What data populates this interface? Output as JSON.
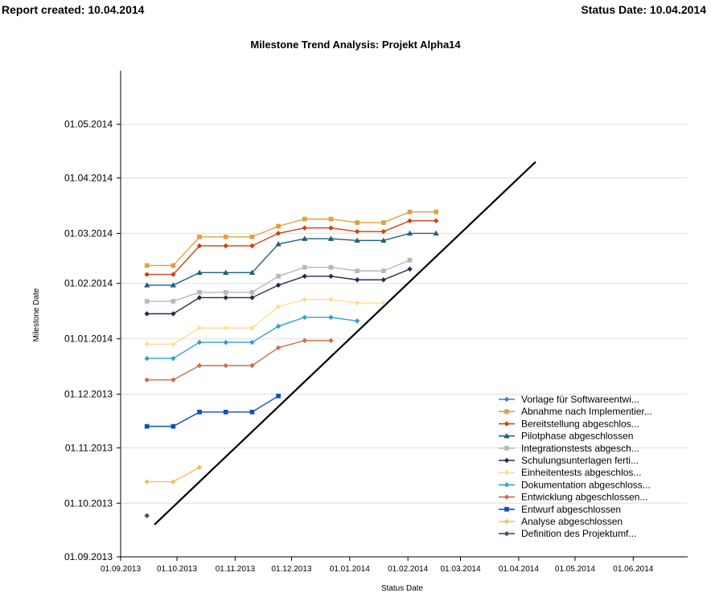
{
  "header": {
    "report_created": "Report created: 10.04.2014",
    "status_date": "Status Date: 10.04.2014"
  },
  "chart_data": {
    "type": "line",
    "title": "Milestone Trend Analysis: Projekt Alpha14",
    "xlabel": "Status Date",
    "ylabel": "Milestone Date",
    "x_ticks": [
      "01.09.2013",
      "01.10.2013",
      "01.11.2013",
      "01.12.2013",
      "01.01.2014",
      "01.02.2014",
      "01.03.2014",
      "01.04.2014",
      "01.05.2014",
      "01.06.2014"
    ],
    "y_ticks": [
      "01.09.2013",
      "01.10.2013",
      "01.11.2013",
      "01.12.2013",
      "01.01.2014",
      "01.02.2014",
      "01.03.2014",
      "01.04.2014",
      "01.05.2014"
    ],
    "xlim": [
      "2013-09-01",
      "2014-06-30"
    ],
    "ylim": [
      "2013-09-01",
      "2014-05-31"
    ],
    "grid": "horizontal",
    "legend_position": "bottom-right",
    "diagonal": {
      "from": "2013-09-19",
      "to": "2014-04-10",
      "color": "#000000"
    },
    "series": [
      {
        "name": "Vorlage für Softwareentwi...",
        "color": "#3f7fd6",
        "marker": "diamond",
        "points": []
      },
      {
        "name": "Abnahme nach Implementier...",
        "color": "#e0a040",
        "marker": "square",
        "points": [
          [
            "2013-09-15",
            "2014-02-11"
          ],
          [
            "2013-09-29",
            "2014-02-11"
          ],
          [
            "2013-10-13",
            "2014-02-27"
          ],
          [
            "2013-10-27",
            "2014-02-27"
          ],
          [
            "2013-11-10",
            "2014-02-27"
          ],
          [
            "2013-11-24",
            "2014-03-05"
          ],
          [
            "2013-12-08",
            "2014-03-09"
          ],
          [
            "2013-12-22",
            "2014-03-09"
          ],
          [
            "2014-01-05",
            "2014-03-07"
          ],
          [
            "2014-01-19",
            "2014-03-07"
          ],
          [
            "2014-02-02",
            "2014-03-13"
          ],
          [
            "2014-02-16",
            "2014-03-13"
          ]
        ]
      },
      {
        "name": "Bereitstellung abgeschlos...",
        "color": "#d04010",
        "marker": "diamond",
        "points": [
          [
            "2013-09-15",
            "2014-02-06"
          ],
          [
            "2013-09-29",
            "2014-02-06"
          ],
          [
            "2013-10-13",
            "2014-02-22"
          ],
          [
            "2013-10-27",
            "2014-02-22"
          ],
          [
            "2013-11-10",
            "2014-02-22"
          ],
          [
            "2013-11-24",
            "2014-03-01"
          ],
          [
            "2013-12-08",
            "2014-03-04"
          ],
          [
            "2013-12-22",
            "2014-03-04"
          ],
          [
            "2014-01-05",
            "2014-03-02"
          ],
          [
            "2014-01-19",
            "2014-03-02"
          ],
          [
            "2014-02-02",
            "2014-03-08"
          ],
          [
            "2014-02-16",
            "2014-03-08"
          ]
        ]
      },
      {
        "name": "Pilotphase abgeschlossen",
        "color": "#206080",
        "marker": "triangle",
        "points": [
          [
            "2013-09-15",
            "2014-01-31"
          ],
          [
            "2013-09-29",
            "2014-01-31"
          ],
          [
            "2013-10-13",
            "2014-02-07"
          ],
          [
            "2013-10-27",
            "2014-02-07"
          ],
          [
            "2013-11-10",
            "2014-02-07"
          ],
          [
            "2013-11-24",
            "2014-02-23"
          ],
          [
            "2013-12-08",
            "2014-02-26"
          ],
          [
            "2013-12-22",
            "2014-02-26"
          ],
          [
            "2014-01-05",
            "2014-02-25"
          ],
          [
            "2014-01-19",
            "2014-02-25"
          ],
          [
            "2014-02-02",
            "2014-03-01"
          ],
          [
            "2014-02-16",
            "2014-03-01"
          ]
        ]
      },
      {
        "name": "Integrationstests abgesch...",
        "color": "#b8b8b8",
        "marker": "square",
        "points": [
          [
            "2013-09-15",
            "2014-01-22"
          ],
          [
            "2013-09-29",
            "2014-01-22"
          ],
          [
            "2013-10-13",
            "2014-01-27"
          ],
          [
            "2013-10-27",
            "2014-01-27"
          ],
          [
            "2013-11-10",
            "2014-01-27"
          ],
          [
            "2013-11-24",
            "2014-02-05"
          ],
          [
            "2013-12-08",
            "2014-02-10"
          ],
          [
            "2013-12-22",
            "2014-02-10"
          ],
          [
            "2014-01-05",
            "2014-02-08"
          ],
          [
            "2014-01-19",
            "2014-02-08"
          ],
          [
            "2014-02-02",
            "2014-02-14"
          ]
        ]
      },
      {
        "name": "Schulungsunterlagen ferti...",
        "color": "#203050",
        "marker": "diamond",
        "points": [
          [
            "2013-09-15",
            "2014-01-15"
          ],
          [
            "2013-09-29",
            "2014-01-15"
          ],
          [
            "2013-10-13",
            "2014-01-24"
          ],
          [
            "2013-10-27",
            "2014-01-24"
          ],
          [
            "2013-11-10",
            "2014-01-24"
          ],
          [
            "2013-11-24",
            "2014-01-31"
          ],
          [
            "2013-12-08",
            "2014-02-05"
          ],
          [
            "2013-12-22",
            "2014-02-05"
          ],
          [
            "2014-01-05",
            "2014-02-03"
          ],
          [
            "2014-01-19",
            "2014-02-03"
          ],
          [
            "2014-02-02",
            "2014-02-09"
          ]
        ]
      },
      {
        "name": "Einheitentests abgeschlos...",
        "color": "#f8e090",
        "marker": "diamond",
        "points": [
          [
            "2013-09-15",
            "2013-12-29"
          ],
          [
            "2013-09-29",
            "2013-12-29"
          ],
          [
            "2013-10-13",
            "2014-01-07"
          ],
          [
            "2013-10-27",
            "2014-01-07"
          ],
          [
            "2013-11-10",
            "2014-01-07"
          ],
          [
            "2013-11-24",
            "2014-01-19"
          ],
          [
            "2013-12-08",
            "2014-01-23"
          ],
          [
            "2013-12-22",
            "2014-01-23"
          ],
          [
            "2014-01-05",
            "2014-01-21"
          ],
          [
            "2014-01-19",
            "2014-01-21"
          ]
        ]
      },
      {
        "name": "Dokumentation abgeschloss...",
        "color": "#30a0d0",
        "marker": "diamond",
        "points": [
          [
            "2013-09-15",
            "2013-12-21"
          ],
          [
            "2013-09-29",
            "2013-12-21"
          ],
          [
            "2013-10-13",
            "2013-12-30"
          ],
          [
            "2013-10-27",
            "2013-12-30"
          ],
          [
            "2013-11-10",
            "2013-12-30"
          ],
          [
            "2013-11-24",
            "2014-01-08"
          ],
          [
            "2013-12-08",
            "2014-01-13"
          ],
          [
            "2013-12-22",
            "2014-01-13"
          ],
          [
            "2014-01-05",
            "2014-01-11"
          ]
        ]
      },
      {
        "name": "Entwicklung abgeschlossen...",
        "color": "#c87050",
        "marker": "diamond",
        "points": [
          [
            "2013-09-15",
            "2013-12-09"
          ],
          [
            "2013-09-29",
            "2013-12-09"
          ],
          [
            "2013-10-13",
            "2013-12-17"
          ],
          [
            "2013-10-27",
            "2013-12-17"
          ],
          [
            "2013-11-10",
            "2013-12-17"
          ],
          [
            "2013-11-24",
            "2013-12-27"
          ],
          [
            "2013-12-08",
            "2013-12-31"
          ],
          [
            "2013-12-22",
            "2013-12-31"
          ]
        ]
      },
      {
        "name": "Entwurf abgeschlossen",
        "color": "#1050c0",
        "marker": "square",
        "points": [
          [
            "2013-09-15",
            "2013-11-13"
          ],
          [
            "2013-09-29",
            "2013-11-13"
          ],
          [
            "2013-10-13",
            "2013-11-21"
          ],
          [
            "2013-10-27",
            "2013-11-21"
          ],
          [
            "2013-11-10",
            "2013-11-21"
          ],
          [
            "2013-11-24",
            "2013-11-30"
          ]
        ]
      },
      {
        "name": "Analyse abgeschlossen",
        "color": "#f0c060",
        "marker": "diamond",
        "points": [
          [
            "2013-09-15",
            "2013-10-13"
          ],
          [
            "2013-09-29",
            "2013-10-13"
          ],
          [
            "2013-10-13",
            "2013-10-21"
          ]
        ]
      },
      {
        "name": "Definition des Projektumf...",
        "color": "#405070",
        "marker": "diamond",
        "points": [
          [
            "2013-09-15",
            "2013-09-24"
          ]
        ]
      }
    ]
  }
}
